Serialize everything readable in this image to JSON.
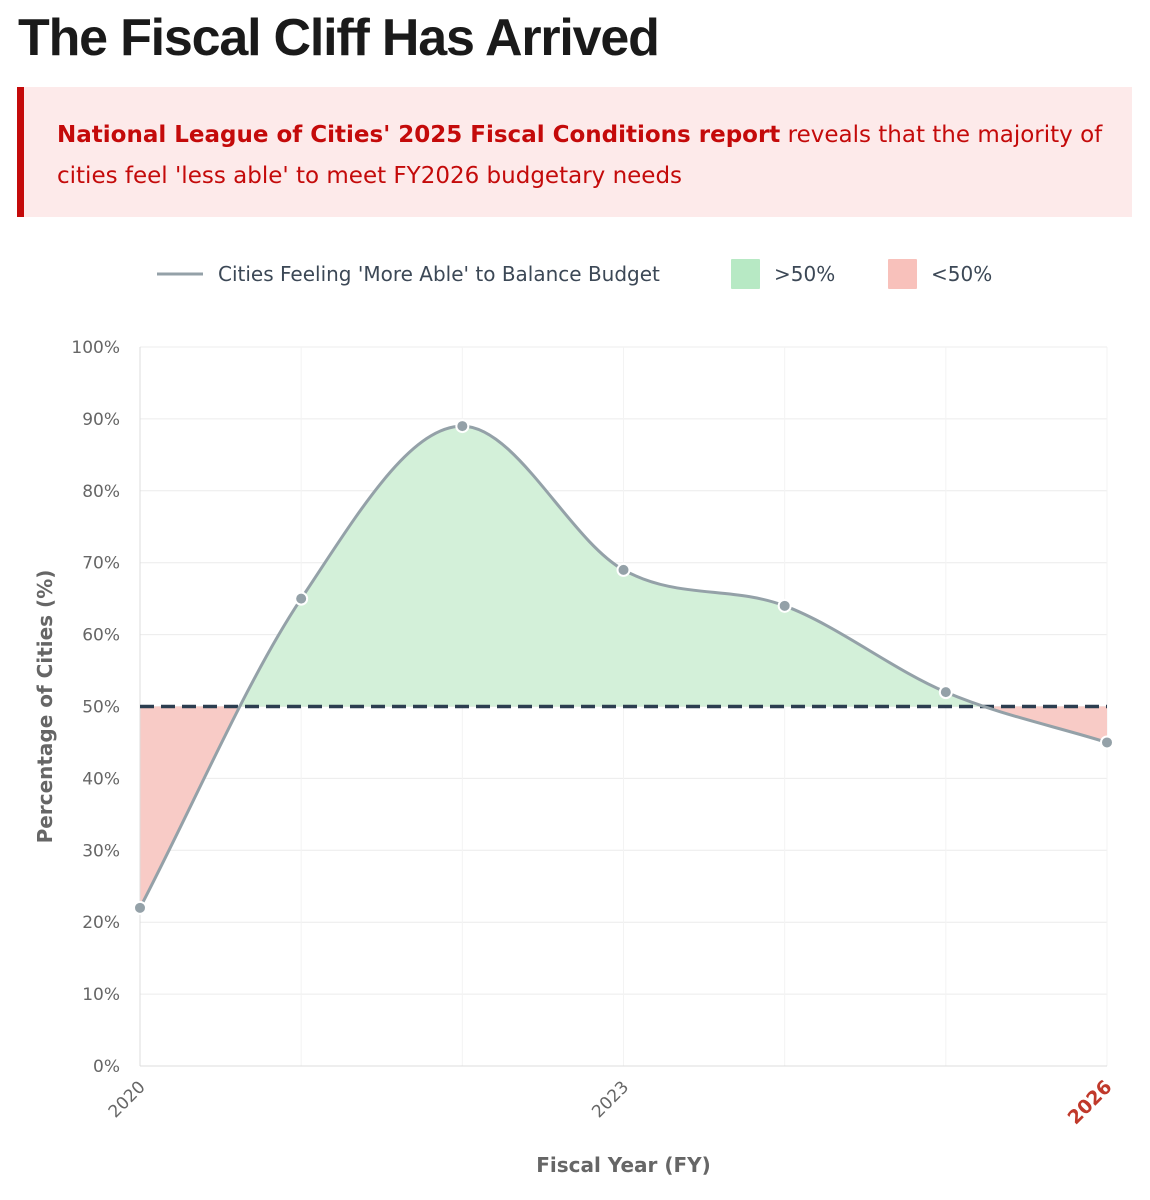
{
  "title": "The Fiscal Cliff Has Arrived",
  "callout": {
    "lead": "National League of Cities' 2025 Fiscal Conditions report",
    "rest": " reveals that the majority of cities feel 'less able' to meet FY2026 budgetary needs"
  },
  "colors": {
    "accent_red": "#c40a0a",
    "callout_bg": "#fdeaea",
    "line": "#94a1a8",
    "above_fill": "#d3f0d9",
    "below_fill": "#f8cbc6",
    "threshold": "#2c3e50",
    "highlight_tick": "#c0392b"
  },
  "chart_data": {
    "type": "area",
    "legend": [
      {
        "label": "Cities Feeling 'More Able' to Balance Budget",
        "kind": "line",
        "color": "#94a1a8"
      },
      {
        "label": ">50%",
        "kind": "box",
        "color": "#b7e9c4"
      },
      {
        "label": "<50%",
        "kind": "box",
        "color": "#f8c1bb"
      }
    ],
    "legend_position": "top-center",
    "x": [
      2020,
      2021,
      2022,
      2023,
      2024,
      2025,
      2026
    ],
    "series": [
      {
        "name": "Cities Feeling 'More Able' to Balance Budget",
        "values": [
          22,
          65,
          89,
          69,
          64,
          52,
          45
        ]
      }
    ],
    "threshold": 50,
    "x_tick_labels": [
      "2020",
      "2023",
      "2026"
    ],
    "highlighted_x_tick": "2026",
    "y_ticks": [
      0,
      10,
      20,
      30,
      40,
      50,
      60,
      70,
      80,
      90,
      100
    ],
    "y_tick_labels": [
      "0%",
      "10%",
      "20%",
      "30%",
      "40%",
      "50%",
      "60%",
      "70%",
      "80%",
      "90%",
      "100%"
    ],
    "xlabel": "Fiscal Year (FY)",
    "ylabel": "Percentage of Cities (%)",
    "ylim": [
      0,
      100
    ],
    "xlim": [
      2020,
      2026
    ],
    "grid": true
  }
}
